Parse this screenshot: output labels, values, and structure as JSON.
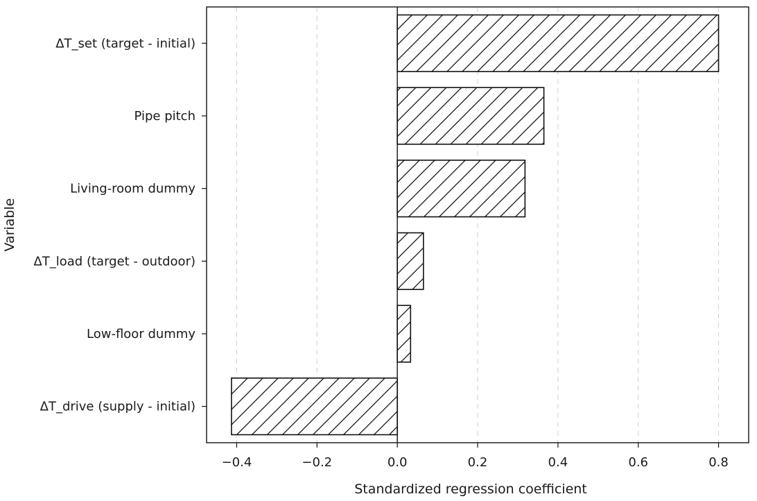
{
  "chart_data": {
    "type": "bar",
    "orientation": "horizontal",
    "categories": [
      "ΔT_set (target - initial)",
      "Pipe pitch",
      "Living-room dummy",
      "ΔT_load (target - outdoor)",
      "Low-floor dummy",
      "ΔT_drive (supply - initial)"
    ],
    "values": [
      0.8,
      0.365,
      0.318,
      0.065,
      0.033,
      -0.413
    ],
    "xlabel": "Standardized regression coefficient",
    "ylabel": "Variable",
    "xlim": [
      -0.475,
      0.875
    ],
    "xticks": [
      -0.4,
      -0.2,
      0.0,
      0.2,
      0.4,
      0.6,
      0.8
    ],
    "xtick_labels": [
      "−0.4",
      "−0.2",
      "0.0",
      "0.2",
      "0.4",
      "0.6",
      "0.8"
    ],
    "grid": "vertical dashed",
    "bar_fill": "hatched",
    "colors": {
      "bar_edge": "#111111",
      "bar_fill": "#ffffff",
      "grid": "#cfcfcf"
    }
  }
}
